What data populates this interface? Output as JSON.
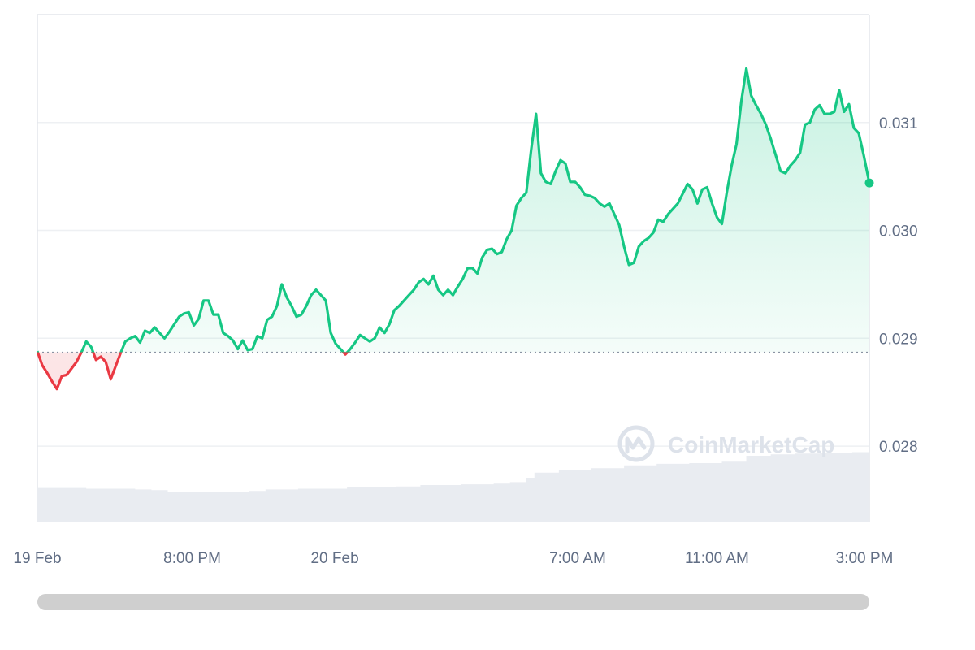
{
  "watermark": {
    "text": "CoinMarketCap"
  },
  "colors": {
    "up": "#16c784",
    "down": "#ea3943",
    "grid": "#eef0f3",
    "frame": "#e3e6eb",
    "axis_text": "#616e85",
    "volume": "#e9ecf1",
    "baseline": "#8a93a3",
    "scrollbar": "#cfcfcf"
  },
  "chart_data": {
    "type": "area",
    "baseline": 0.02887,
    "ylim": [
      0.0273,
      0.032
    ],
    "y_ticks": [
      {
        "value": 0.031,
        "label": "0.031"
      },
      {
        "value": 0.03,
        "label": "0.030"
      },
      {
        "value": 0.029,
        "label": "0.029"
      },
      {
        "value": 0.028,
        "label": "0.028"
      }
    ],
    "x_ticks": [
      {
        "t": 0,
        "label": "19 Feb"
      },
      {
        "t": 190,
        "label": "8:00 PM"
      },
      {
        "t": 365,
        "label": "20 Feb"
      },
      {
        "t": 663,
        "label": "7:00 AM"
      },
      {
        "t": 834,
        "label": "11:00 AM"
      },
      {
        "t": 1015,
        "label": "3:00 PM"
      }
    ],
    "xlim": [
      0,
      1021
    ],
    "series": [
      {
        "points": [
          [
            0,
            0.02888
          ],
          [
            6,
            0.02875
          ],
          [
            12,
            0.02868
          ],
          [
            18,
            0.0286
          ],
          [
            24,
            0.02853
          ],
          [
            30,
            0.02865
          ],
          [
            36,
            0.02866
          ],
          [
            42,
            0.02872
          ],
          [
            48,
            0.02878
          ],
          [
            54,
            0.02887
          ],
          [
            60,
            0.02897
          ],
          [
            66,
            0.02892
          ],
          [
            72,
            0.0288
          ],
          [
            78,
            0.02883
          ],
          [
            84,
            0.02878
          ],
          [
            90,
            0.02862
          ],
          [
            96,
            0.02874
          ],
          [
            102,
            0.02886
          ],
          [
            108,
            0.02897
          ],
          [
            114,
            0.029
          ],
          [
            120,
            0.02902
          ],
          [
            126,
            0.02896
          ],
          [
            132,
            0.02907
          ],
          [
            138,
            0.02905
          ],
          [
            144,
            0.0291
          ],
          [
            150,
            0.02905
          ],
          [
            156,
            0.029
          ],
          [
            162,
            0.02906
          ],
          [
            168,
            0.02913
          ],
          [
            174,
            0.0292
          ],
          [
            180,
            0.02923
          ],
          [
            186,
            0.02924
          ],
          [
            192,
            0.02912
          ],
          [
            198,
            0.02918
          ],
          [
            204,
            0.02935
          ],
          [
            210,
            0.02935
          ],
          [
            216,
            0.02922
          ],
          [
            222,
            0.02922
          ],
          [
            228,
            0.02905
          ],
          [
            234,
            0.02902
          ],
          [
            240,
            0.02898
          ],
          [
            246,
            0.0289
          ],
          [
            252,
            0.02898
          ],
          [
            258,
            0.02889
          ],
          [
            264,
            0.0289
          ],
          [
            270,
            0.02902
          ],
          [
            276,
            0.029
          ],
          [
            282,
            0.02917
          ],
          [
            288,
            0.0292
          ],
          [
            294,
            0.0293
          ],
          [
            300,
            0.0295
          ],
          [
            306,
            0.02938
          ],
          [
            312,
            0.0293
          ],
          [
            318,
            0.0292
          ],
          [
            324,
            0.02922
          ],
          [
            330,
            0.0293
          ],
          [
            336,
            0.0294
          ],
          [
            342,
            0.02945
          ],
          [
            348,
            0.0294
          ],
          [
            354,
            0.02935
          ],
          [
            360,
            0.02905
          ],
          [
            366,
            0.02895
          ],
          [
            372,
            0.0289
          ],
          [
            378,
            0.02885
          ],
          [
            384,
            0.0289
          ],
          [
            390,
            0.02896
          ],
          [
            396,
            0.02903
          ],
          [
            402,
            0.029
          ],
          [
            408,
            0.02897
          ],
          [
            414,
            0.029
          ],
          [
            420,
            0.0291
          ],
          [
            426,
            0.02905
          ],
          [
            432,
            0.02913
          ],
          [
            438,
            0.02926
          ],
          [
            444,
            0.0293
          ],
          [
            450,
            0.02935
          ],
          [
            456,
            0.0294
          ],
          [
            462,
            0.02945
          ],
          [
            468,
            0.02952
          ],
          [
            474,
            0.02955
          ],
          [
            480,
            0.0295
          ],
          [
            486,
            0.02958
          ],
          [
            492,
            0.02945
          ],
          [
            498,
            0.0294
          ],
          [
            504,
            0.02945
          ],
          [
            510,
            0.0294
          ],
          [
            516,
            0.02948
          ],
          [
            522,
            0.02955
          ],
          [
            528,
            0.02965
          ],
          [
            534,
            0.02965
          ],
          [
            540,
            0.0296
          ],
          [
            546,
            0.02975
          ],
          [
            552,
            0.02982
          ],
          [
            558,
            0.02983
          ],
          [
            564,
            0.02978
          ],
          [
            570,
            0.0298
          ],
          [
            576,
            0.02992
          ],
          [
            582,
            0.03
          ],
          [
            588,
            0.03023
          ],
          [
            594,
            0.0303
          ],
          [
            600,
            0.03035
          ],
          [
            606,
            0.03075
          ],
          [
            612,
            0.03108
          ],
          [
            618,
            0.03053
          ],
          [
            624,
            0.03045
          ],
          [
            630,
            0.03043
          ],
          [
            636,
            0.03055
          ],
          [
            642,
            0.03065
          ],
          [
            648,
            0.03062
          ],
          [
            654,
            0.03045
          ],
          [
            660,
            0.03045
          ],
          [
            666,
            0.0304
          ],
          [
            672,
            0.03033
          ],
          [
            678,
            0.03032
          ],
          [
            684,
            0.0303
          ],
          [
            690,
            0.03025
          ],
          [
            696,
            0.03022
          ],
          [
            702,
            0.03025
          ],
          [
            708,
            0.03015
          ],
          [
            714,
            0.03005
          ],
          [
            720,
            0.02985
          ],
          [
            726,
            0.02968
          ],
          [
            732,
            0.0297
          ],
          [
            738,
            0.02985
          ],
          [
            744,
            0.0299
          ],
          [
            750,
            0.02993
          ],
          [
            756,
            0.02998
          ],
          [
            762,
            0.0301
          ],
          [
            768,
            0.03008
          ],
          [
            774,
            0.03015
          ],
          [
            780,
            0.0302
          ],
          [
            786,
            0.03025
          ],
          [
            792,
            0.03034
          ],
          [
            798,
            0.03043
          ],
          [
            804,
            0.03038
          ],
          [
            810,
            0.03025
          ],
          [
            816,
            0.03038
          ],
          [
            822,
            0.0304
          ],
          [
            828,
            0.03025
          ],
          [
            834,
            0.03012
          ],
          [
            840,
            0.03006
          ],
          [
            846,
            0.03035
          ],
          [
            852,
            0.0306
          ],
          [
            858,
            0.0308
          ],
          [
            864,
            0.0312
          ],
          [
            870,
            0.0315
          ],
          [
            876,
            0.03125
          ],
          [
            882,
            0.03116
          ],
          [
            888,
            0.03108
          ],
          [
            894,
            0.03098
          ],
          [
            900,
            0.03085
          ],
          [
            906,
            0.0307
          ],
          [
            912,
            0.03055
          ],
          [
            918,
            0.03053
          ],
          [
            924,
            0.0306
          ],
          [
            930,
            0.03065
          ],
          [
            936,
            0.03072
          ],
          [
            942,
            0.03098
          ],
          [
            948,
            0.031
          ],
          [
            954,
            0.03112
          ],
          [
            960,
            0.03116
          ],
          [
            966,
            0.03108
          ],
          [
            972,
            0.03108
          ],
          [
            978,
            0.0311
          ],
          [
            984,
            0.0313
          ],
          [
            990,
            0.0311
          ],
          [
            996,
            0.03117
          ],
          [
            1002,
            0.03095
          ],
          [
            1008,
            0.0309
          ],
          [
            1014,
            0.0307
          ],
          [
            1021,
            0.03044
          ]
        ]
      }
    ],
    "volume": {
      "ylim": [
        0,
        1
      ],
      "points": [
        [
          0,
          0.46
        ],
        [
          60,
          0.45
        ],
        [
          120,
          0.44
        ],
        [
          140,
          0.43
        ],
        [
          160,
          0.4
        ],
        [
          200,
          0.41
        ],
        [
          260,
          0.42
        ],
        [
          280,
          0.44
        ],
        [
          320,
          0.45
        ],
        [
          360,
          0.45
        ],
        [
          380,
          0.47
        ],
        [
          440,
          0.48
        ],
        [
          470,
          0.5
        ],
        [
          520,
          0.51
        ],
        [
          560,
          0.52
        ],
        [
          580,
          0.54
        ],
        [
          600,
          0.6
        ],
        [
          610,
          0.67
        ],
        [
          640,
          0.7
        ],
        [
          680,
          0.73
        ],
        [
          720,
          0.77
        ],
        [
          760,
          0.79
        ],
        [
          800,
          0.8
        ],
        [
          840,
          0.82
        ],
        [
          870,
          0.9
        ],
        [
          900,
          0.92
        ],
        [
          930,
          0.93
        ],
        [
          960,
          0.94
        ],
        [
          1000,
          0.95
        ],
        [
          1021,
          0.95
        ]
      ]
    }
  }
}
